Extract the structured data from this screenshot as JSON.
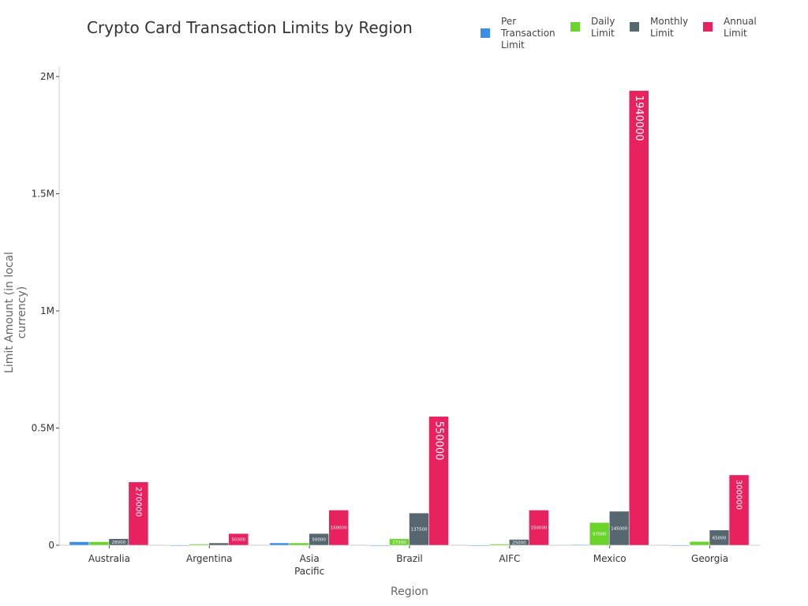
{
  "chart_data": {
    "type": "bar",
    "title": "Crypto Card Transaction Limits by Region",
    "xlabel": "Region",
    "ylabel": "Limit Amount (in local currency)",
    "ylim": [
      0,
      2050000
    ],
    "yticks": [
      0,
      500000,
      1000000,
      1500000,
      2000000
    ],
    "ytick_labels": [
      "0",
      "0.5M",
      "1M",
      "1.5M",
      "2M"
    ],
    "grid": false,
    "legend_position": "top-right",
    "categories": [
      "Australia",
      "Argentina",
      "Asia Pacific",
      "Brazil",
      "AIFC",
      "Mexico",
      "Georgia"
    ],
    "series": [
      {
        "name": "Per Transaction Limit",
        "color": "#3a8ee6",
        "values": [
          15000,
          1000,
          10000,
          1000,
          1000,
          2000,
          1000
        ]
      },
      {
        "name": "Daily Limit",
        "color": "#6ad42c",
        "values": [
          15000,
          5000,
          10000,
          27500,
          5000,
          97000,
          16000
        ]
      },
      {
        "name": "Monthly Limit",
        "color": "#56676f",
        "values": [
          28000,
          10000,
          50000,
          137500,
          25000,
          145000,
          65000
        ]
      },
      {
        "name": "Annual Limit",
        "color": "#e8215f",
        "values": [
          270000,
          50000,
          150000,
          550000,
          150000,
          1940000,
          300000
        ]
      }
    ]
  }
}
